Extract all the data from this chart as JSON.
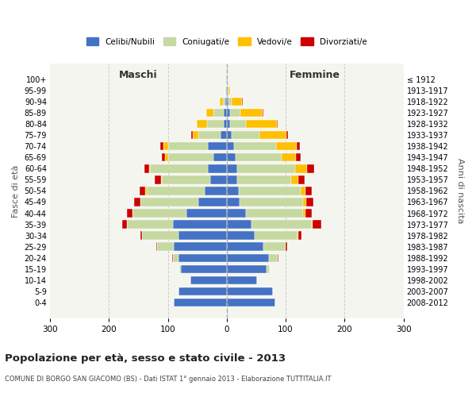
{
  "age_groups": [
    "0-4",
    "5-9",
    "10-14",
    "15-19",
    "20-24",
    "25-29",
    "30-34",
    "35-39",
    "40-44",
    "45-49",
    "50-54",
    "55-59",
    "60-64",
    "65-69",
    "70-74",
    "75-79",
    "80-84",
    "85-89",
    "90-94",
    "95-99",
    "100+"
  ],
  "birth_years": [
    "2008-2012",
    "2003-2007",
    "1998-2002",
    "1993-1997",
    "1988-1992",
    "1983-1987",
    "1978-1982",
    "1973-1977",
    "1968-1972",
    "1963-1967",
    "1958-1962",
    "1953-1957",
    "1948-1952",
    "1943-1947",
    "1938-1942",
    "1933-1937",
    "1928-1932",
    "1923-1927",
    "1918-1922",
    "1913-1917",
    "≤ 1912"
  ],
  "colors": {
    "celibe": "#4472c4",
    "coniugato": "#c5d9a0",
    "vedovo": "#ffc000",
    "divorziato": "#cc0000"
  },
  "maschi": {
    "celibe": [
      90,
      82,
      62,
      78,
      82,
      90,
      82,
      92,
      68,
      48,
      38,
      28,
      32,
      22,
      32,
      10,
      5,
      5,
      2,
      1,
      1
    ],
    "coniugato": [
      0,
      0,
      0,
      2,
      10,
      28,
      62,
      78,
      92,
      98,
      98,
      82,
      98,
      78,
      68,
      38,
      28,
      18,
      5,
      1,
      0
    ],
    "vedovo": [
      0,
      0,
      0,
      0,
      0,
      0,
      0,
      0,
      0,
      0,
      2,
      2,
      2,
      5,
      8,
      10,
      18,
      12,
      5,
      0,
      0
    ],
    "divorziato": [
      0,
      0,
      0,
      0,
      1,
      2,
      3,
      8,
      10,
      12,
      10,
      10,
      8,
      5,
      5,
      2,
      0,
      0,
      0,
      0,
      0
    ]
  },
  "femmine": {
    "nubile": [
      82,
      78,
      52,
      68,
      72,
      62,
      48,
      42,
      32,
      22,
      20,
      18,
      18,
      15,
      12,
      8,
      5,
      5,
      3,
      1,
      1
    ],
    "coniugata": [
      0,
      0,
      0,
      5,
      15,
      38,
      72,
      102,
      98,
      108,
      105,
      92,
      98,
      78,
      72,
      48,
      28,
      18,
      5,
      2,
      0
    ],
    "vedova": [
      0,
      0,
      0,
      0,
      0,
      0,
      2,
      2,
      3,
      5,
      8,
      12,
      20,
      25,
      35,
      45,
      52,
      38,
      18,
      3,
      1
    ],
    "divorziata": [
      0,
      0,
      0,
      0,
      1,
      2,
      5,
      15,
      12,
      12,
      12,
      10,
      12,
      8,
      5,
      3,
      2,
      1,
      1,
      0,
      0
    ]
  },
  "xlim": 300,
  "title": "Popolazione per età, sesso e stato civile - 2013",
  "subtitle": "COMUNE DI BORGO SAN GIACOMO (BS) - Dati ISTAT 1° gennaio 2013 - Elaborazione TUTTITALIA.IT",
  "ylabel_left": "Fasce di età",
  "ylabel_right": "Anni di nascita",
  "xlabel_left": "Maschi",
  "xlabel_right": "Femmine",
  "bg_color": "#f5f5f0"
}
